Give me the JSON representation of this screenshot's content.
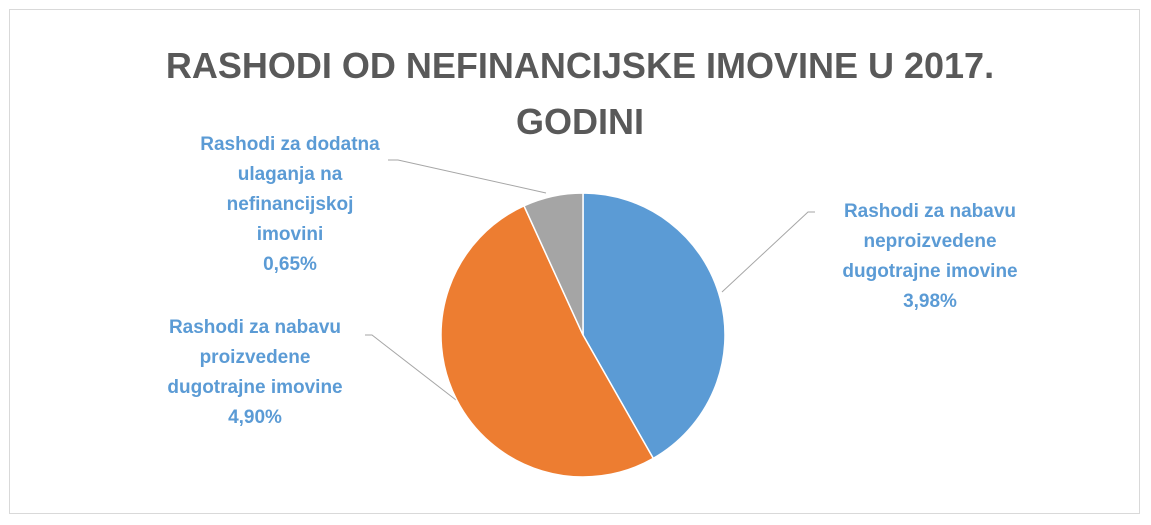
{
  "chart_data": {
    "type": "pie",
    "title": "RASHODI OD NEFINANCIJSKE IMOVINE U 2017. GODINI",
    "categories": [
      "Rashodi za nabavu neproizvedene dugotrajne imovine",
      "Rashodi za nabavu proizvedene dugotrajne imovine",
      "Rashodi za dodatna ulaganja na nefinancijskoj imovini"
    ],
    "values": [
      3.98,
      4.9,
      0.65
    ],
    "value_labels": [
      "3,98%",
      "4,90%",
      "0,65%"
    ],
    "colors": [
      "#5b9bd5",
      "#ed7d31",
      "#a5a5a5"
    ]
  }
}
